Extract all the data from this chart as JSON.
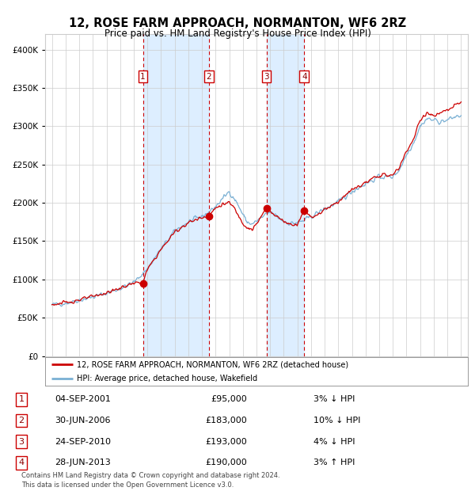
{
  "title": "12, ROSE FARM APPROACH, NORMANTON, WF6 2RZ",
  "subtitle": "Price paid vs. HM Land Registry's House Price Index (HPI)",
  "transactions": [
    {
      "num": 1,
      "date": "04-SEP-2001",
      "price": 95000,
      "pct": "3%",
      "dir": "↓",
      "year_x": 2001.67
    },
    {
      "num": 2,
      "date": "30-JUN-2006",
      "price": 183000,
      "pct": "10%",
      "dir": "↓",
      "year_x": 2006.5
    },
    {
      "num": 3,
      "date": "24-SEP-2010",
      "price": 193000,
      "pct": "4%",
      "dir": "↓",
      "year_x": 2010.73
    },
    {
      "num": 4,
      "date": "28-JUN-2013",
      "price": 190000,
      "pct": "3%",
      "dir": "↑",
      "year_x": 2013.5
    }
  ],
  "legend_line1": "12, ROSE FARM APPROACH, NORMANTON, WF6 2RZ (detached house)",
  "legend_line2": "HPI: Average price, detached house, Wakefield",
  "footer1": "Contains HM Land Registry data © Crown copyright and database right 2024.",
  "footer2": "This data is licensed under the Open Government Licence v3.0.",
  "line_color": "#cc0000",
  "hpi_color": "#7ab0d4",
  "shade_color": "#ddeeff",
  "dot_color": "#cc0000",
  "ylim": [
    0,
    420000
  ],
  "yticks": [
    0,
    50000,
    100000,
    150000,
    200000,
    250000,
    300000,
    350000,
    400000
  ],
  "xlim": [
    1994.5,
    2025.5
  ],
  "background_color": "#ffffff",
  "grid_color": "#cccccc"
}
